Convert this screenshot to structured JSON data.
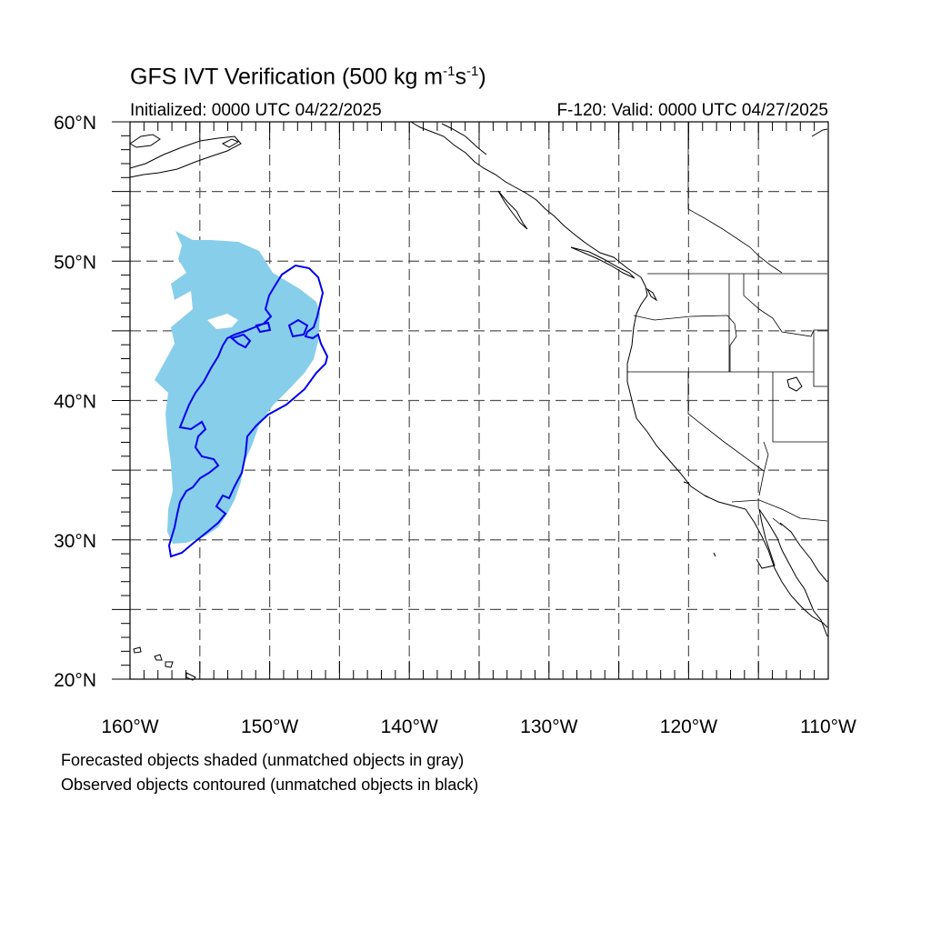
{
  "title": {
    "main": "GFS IVT Verification (500 kg m",
    "exp1": "-1",
    "mid": "s",
    "exp2": "-1",
    "end": ")"
  },
  "initialized": "Initialized: 0000 UTC 04/22/2025",
  "valid": "F-120: Valid: 0000 UTC 04/27/2025",
  "captions": {
    "forecast": "Forecasted objects shaded (unmatched objects in gray)",
    "observed": "Observed objects contoured (unmatched objects in black)"
  },
  "map": {
    "lon_range": [
      -160,
      -110
    ],
    "lat_range": [
      20,
      60
    ],
    "lon_ticks": [
      {
        "value": -160,
        "label": "160°W"
      },
      {
        "value": -150,
        "label": "150°W"
      },
      {
        "value": -140,
        "label": "140°W"
      },
      {
        "value": -130,
        "label": "130°W"
      },
      {
        "value": -120,
        "label": "120°W"
      },
      {
        "value": -110,
        "label": "110°W"
      }
    ],
    "lat_ticks": [
      {
        "value": 60,
        "label": "60°N"
      },
      {
        "value": 50,
        "label": "50°N"
      },
      {
        "value": 40,
        "label": "40°N"
      },
      {
        "value": 30,
        "label": "30°N"
      },
      {
        "value": 20,
        "label": "20°N"
      }
    ],
    "grid_lons": [
      -155,
      -150,
      -145,
      -140,
      -135,
      -130,
      -125,
      -120,
      -115
    ],
    "grid_lats": [
      25,
      30,
      35,
      40,
      45,
      50,
      55
    ],
    "colors": {
      "forecast_fill": "#87ceeb",
      "observed_contour": "#0000ee",
      "coastline": "#000000",
      "grid": "#555555"
    }
  }
}
